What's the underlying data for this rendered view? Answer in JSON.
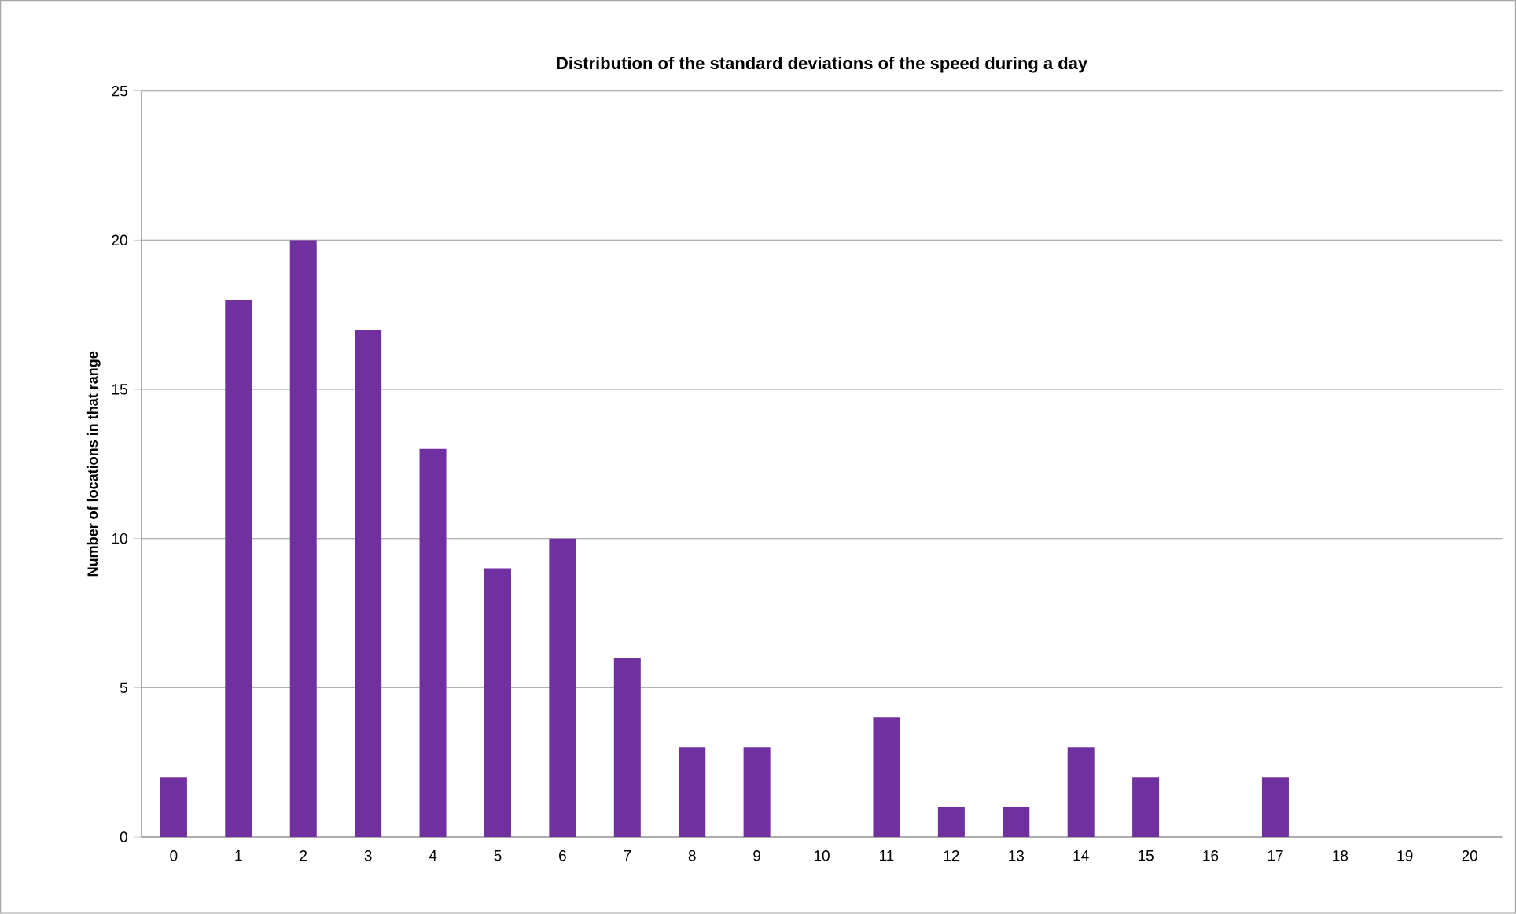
{
  "chart_data": {
    "type": "bar",
    "title": "Distribution of the standard deviations of the speed  during a day",
    "ylabel": "Number of locations in that range",
    "categories": [
      "0",
      "1",
      "2",
      "3",
      "4",
      "5",
      "6",
      "7",
      "8",
      "9",
      "10",
      "11",
      "12",
      "13",
      "14",
      "15",
      "16",
      "17",
      "18",
      "19",
      "20"
    ],
    "values": [
      2,
      18,
      20,
      17,
      13,
      9,
      10,
      6,
      3,
      3,
      0,
      4,
      1,
      1,
      3,
      2,
      0,
      2,
      0,
      0,
      0
    ],
    "color": "#7030a0",
    "ylim": [
      0,
      25
    ],
    "yticks": [
      0,
      5,
      10,
      15,
      20,
      25
    ],
    "grid": "y"
  }
}
